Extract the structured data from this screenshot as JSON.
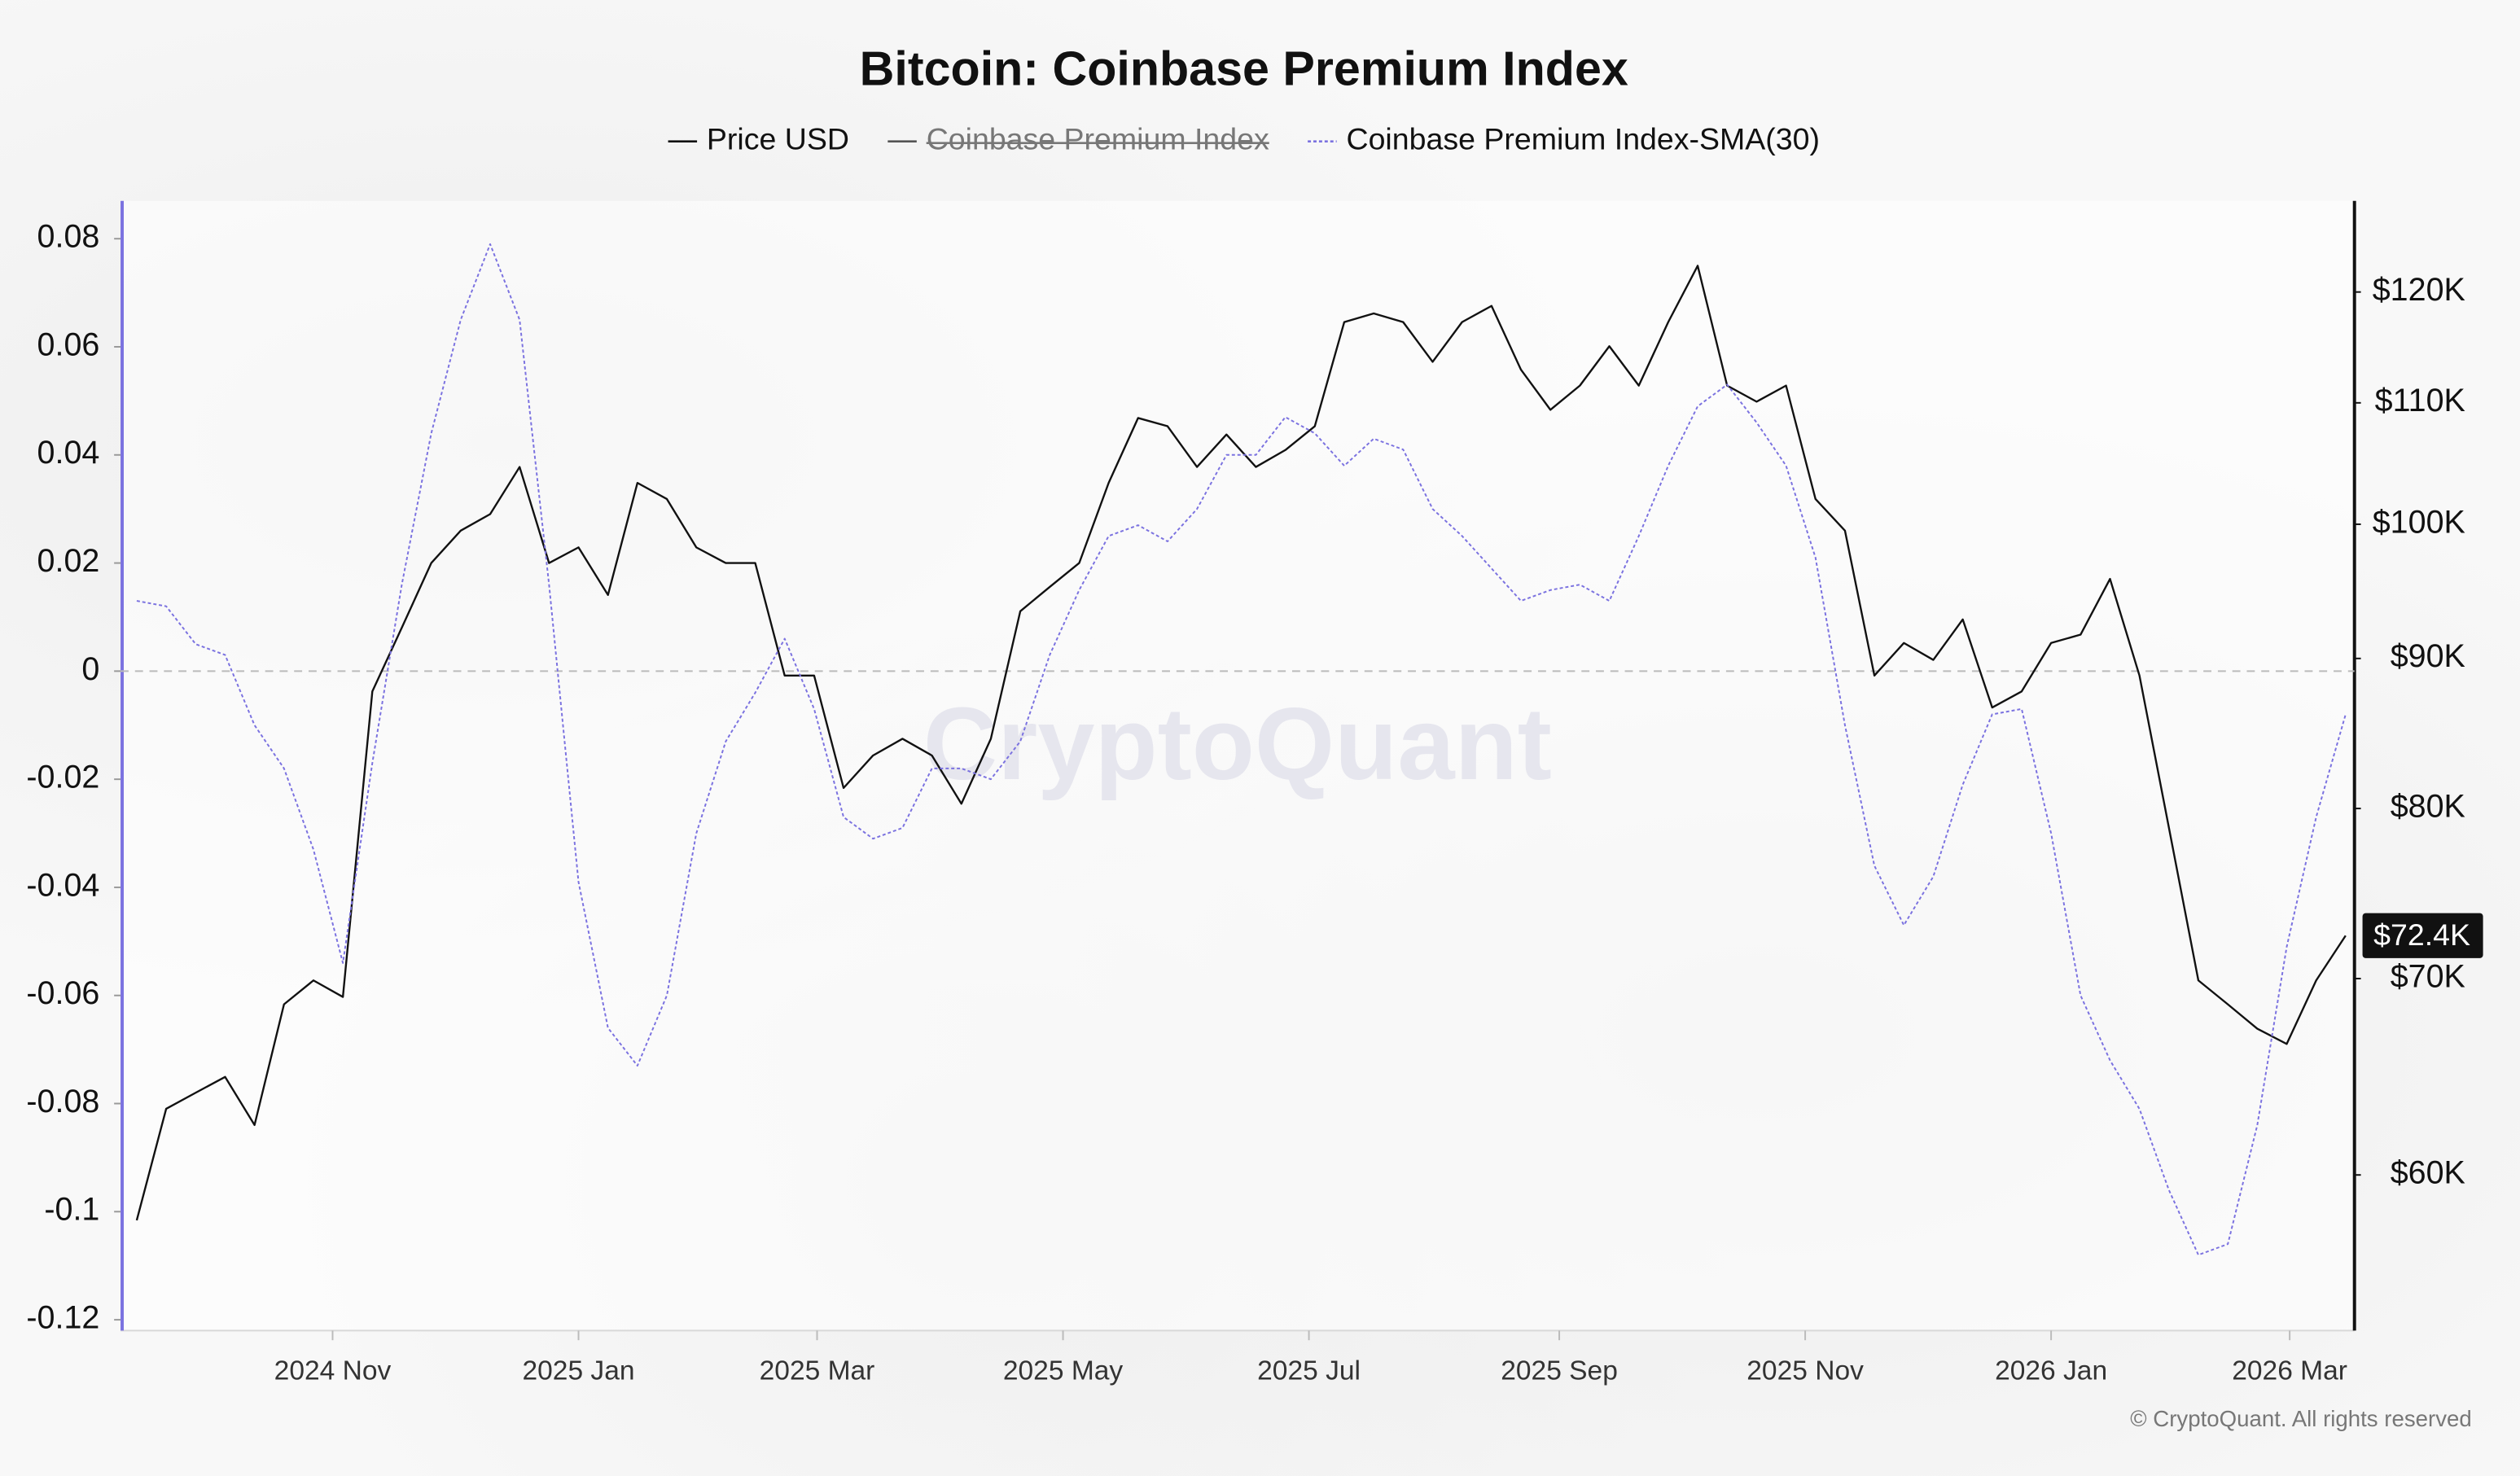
{
  "chart_data": {
    "type": "line",
    "title": "Bitcoin: Coinbase Premium Index",
    "watermark": "CryptoQuant",
    "footer": "© CryptoQuant. All rights reserved",
    "x": [
      2024.7,
      2024.72,
      2024.74,
      2024.76,
      2024.78,
      2024.8,
      2024.82,
      2024.84,
      2024.86,
      2024.88,
      2024.9,
      2024.92,
      2024.94,
      2024.96,
      2024.98,
      2025.0,
      2025.02,
      2025.04,
      2025.06,
      2025.08,
      2025.1,
      2025.12,
      2025.14,
      2025.16,
      2025.18,
      2025.2,
      2025.22,
      2025.24,
      2025.26,
      2025.28,
      2025.3,
      2025.32,
      2025.34,
      2025.36,
      2025.38,
      2025.4,
      2025.42,
      2025.44,
      2025.46,
      2025.48,
      2025.5,
      2025.52,
      2025.54,
      2025.56,
      2025.58,
      2025.6,
      2025.62,
      2025.64,
      2025.66,
      2025.68,
      2025.7,
      2025.72,
      2025.74,
      2025.76,
      2025.78,
      2025.8,
      2025.82,
      2025.84,
      2025.86,
      2025.88,
      2025.9,
      2025.92,
      2025.94,
      2025.96,
      2025.98,
      2026.0,
      2026.02,
      2026.04,
      2026.06,
      2026.08,
      2026.1,
      2026.12,
      2026.14,
      2026.16,
      2026.18,
      2026.2
    ],
    "xlim": [
      2024.689,
      2026.206
    ],
    "xticks": [
      {
        "value": 2024.833,
        "label": "2024 Nov"
      },
      {
        "value": 2025.0,
        "label": "2025 Jan"
      },
      {
        "value": 2025.162,
        "label": "2025 Mar"
      },
      {
        "value": 2025.329,
        "label": "2025 May"
      },
      {
        "value": 2025.496,
        "label": "2025 Jul"
      },
      {
        "value": 2025.666,
        "label": "2025 Sep"
      },
      {
        "value": 2025.833,
        "label": "2025 Nov"
      },
      {
        "value": 2026.0,
        "label": "2026 Jan"
      },
      {
        "value": 2026.162,
        "label": "2026 Mar"
      }
    ],
    "ylim": [
      -0.122,
      0.087
    ],
    "yticks": [
      0.08,
      0.06,
      0.04,
      0.02,
      0,
      -0.02,
      -0.04,
      -0.06,
      -0.08,
      -0.1,
      -0.12
    ],
    "y2lim": [
      53100,
      128900
    ],
    "y2_log": true,
    "y2ticks": [
      {
        "value": 120000,
        "label": "$120K"
      },
      {
        "value": 110000,
        "label": "$110K"
      },
      {
        "value": 100000,
        "label": "$100K"
      },
      {
        "value": 90000,
        "label": "$90K"
      },
      {
        "value": 80000,
        "label": "$80K"
      },
      {
        "value": 70000,
        "label": "$70K"
      },
      {
        "value": 60000,
        "label": "$60K"
      }
    ],
    "zero_line": true,
    "grid": false,
    "last_price_label": {
      "value": 72400,
      "label": "$72.4K"
    },
    "series": [
      {
        "name": "Price USD",
        "color": "#111111",
        "axis": "y2",
        "line_style": "solid",
        "values": [
          57900,
          63200,
          64000,
          64800,
          62400,
          68600,
          69900,
          69000,
          87700,
          92200,
          97000,
          99500,
          100800,
          104600,
          97000,
          98200,
          94600,
          103300,
          102000,
          98200,
          97000,
          97000,
          88800,
          88800,
          81300,
          83400,
          84500,
          83400,
          80300,
          84500,
          93400,
          95200,
          97000,
          103300,
          108700,
          108000,
          104600,
          107300,
          104600,
          106000,
          108000,
          117200,
          118000,
          117200,
          113600,
          117200,
          118700,
          112900,
          109400,
          111500,
          115000,
          111500,
          117200,
          122500,
          111500,
          110100,
          111500,
          102000,
          99500,
          88800,
          91100,
          89900,
          92800,
          86600,
          87700,
          91100,
          91700,
          95800,
          88800,
          78800,
          69900,
          68600,
          67300,
          66500,
          69900,
          72400
        ]
      },
      {
        "name": "Coinbase Premium Index",
        "color": "#444444",
        "axis": "y",
        "line_style": "solid",
        "hidden": true,
        "values": [
          null,
          null,
          null,
          null,
          null,
          null,
          null,
          null,
          null,
          null,
          null,
          null,
          null,
          null,
          null,
          null,
          null,
          null,
          null,
          null,
          null,
          null,
          null,
          null,
          null,
          null,
          null,
          null,
          null,
          null,
          null,
          null,
          null,
          null,
          null,
          null,
          null,
          null,
          null,
          null,
          null,
          null,
          null,
          null,
          null,
          null,
          null,
          null,
          null,
          null,
          null,
          null,
          null,
          null,
          null,
          null,
          null,
          null,
          null,
          null,
          null,
          null,
          null,
          null,
          null,
          null,
          null,
          null,
          null,
          null,
          null,
          null,
          null,
          null,
          null,
          null
        ]
      },
      {
        "name": "Coinbase Premium Index-SMA(30)",
        "color": "#7b72e0",
        "axis": "y",
        "line_style": "dashed",
        "values": [
          0.013,
          0.012,
          0.005,
          0.003,
          -0.01,
          -0.018,
          -0.033,
          -0.054,
          -0.017,
          0.016,
          0.044,
          0.065,
          0.079,
          0.065,
          0.016,
          -0.039,
          -0.066,
          -0.073,
          -0.06,
          -0.03,
          -0.013,
          -0.004,
          0.006,
          -0.007,
          -0.027,
          -0.031,
          -0.029,
          -0.018,
          -0.018,
          -0.02,
          -0.013,
          0.003,
          0.015,
          0.025,
          0.027,
          0.024,
          0.03,
          0.04,
          0.04,
          0.047,
          0.044,
          0.038,
          0.043,
          0.041,
          0.03,
          0.025,
          0.019,
          0.013,
          0.015,
          0.016,
          0.013,
          0.025,
          0.038,
          0.049,
          0.053,
          0.046,
          0.038,
          0.021,
          -0.01,
          -0.036,
          -0.047,
          -0.038,
          -0.021,
          -0.008,
          -0.007,
          -0.03,
          -0.06,
          -0.072,
          -0.081,
          -0.096,
          -0.108,
          -0.106,
          -0.084,
          -0.051,
          -0.027,
          -0.008
        ]
      }
    ]
  }
}
